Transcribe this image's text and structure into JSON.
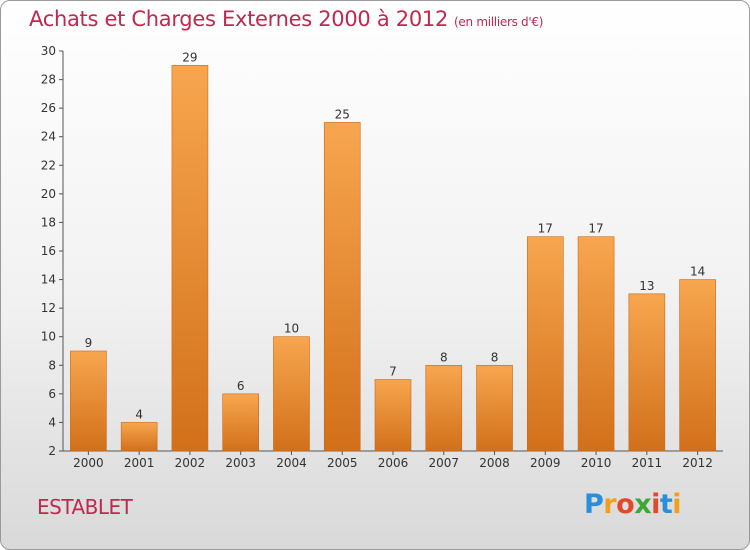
{
  "header": {
    "title": "Achats et Charges Externes 2000 à 2012",
    "unit": "(en milliers d'€)"
  },
  "footer": {
    "commune": "ESTABLET",
    "logo": {
      "text": "Proxiti",
      "letter_colors": [
        "#2a8fd8",
        "#f0a020",
        "#e04a2a",
        "#3aaa35",
        "#e04a2a",
        "#2a8fd8",
        "#f0a020"
      ]
    }
  },
  "colors": {
    "title": "#c0284e",
    "bar_light": "#f7a64f",
    "bar_dark": "#d2701a",
    "axis": "#555555",
    "grid": "#ffffff"
  },
  "chart_data": {
    "type": "bar",
    "title": "Achats et Charges Externes 2000 à 2012",
    "subtitle": "(en milliers d'€)",
    "categories": [
      "2000",
      "2001",
      "2002",
      "2003",
      "2004",
      "2005",
      "2006",
      "2007",
      "2008",
      "2009",
      "2010",
      "2011",
      "2012"
    ],
    "values": [
      9,
      4,
      29,
      6,
      10,
      25,
      7,
      8,
      8,
      17,
      17,
      13,
      14
    ],
    "ylim": [
      2,
      30
    ],
    "yticks": [
      2,
      4,
      6,
      8,
      10,
      12,
      14,
      16,
      18,
      20,
      22,
      24,
      26,
      28,
      30
    ],
    "grid": false,
    "data_labels": true
  }
}
